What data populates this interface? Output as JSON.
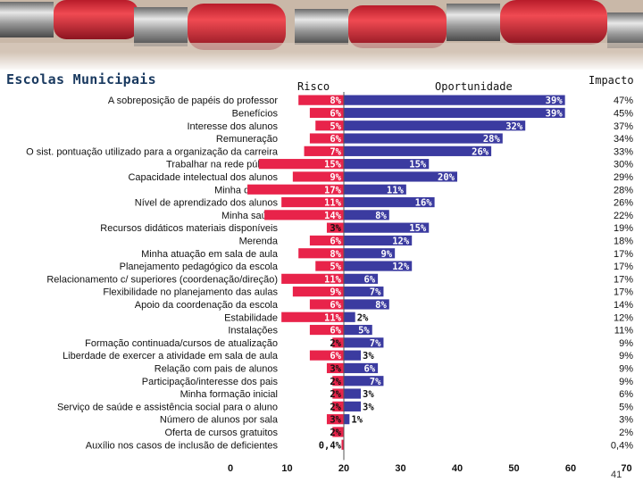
{
  "title": "Escolas Municipais",
  "page_number": "41",
  "chart_data": {
    "type": "bar",
    "stacked_diverging": true,
    "categories": [
      "A sobreposição de papéis do professor",
      "Benefícios",
      "Interesse dos alunos",
      "Remuneração",
      "O sist. pontuação utilizado para a organização da carreira",
      "Trabalhar na rede pública",
      "Capacidade intelectual dos alunos",
      "Minha didática",
      "Nível de aprendizado dos alunos",
      "Minha saúde",
      "Recursos didáticos materiais disponíveis",
      "Merenda",
      "Minha atuação em sala de aula",
      "Planejamento pedagógico da escola",
      "Relacionamento c/ superiores (coordenação/direção)",
      "Flexibilidade no planejamento das aulas",
      "Apoio da coordenação da escola",
      "Estabilidade",
      "Instalações",
      "Formação continuada/cursos de atualização",
      "Liberdade de exercer a atividade em sala de aula",
      "Relação com pais de alunos",
      "Participação/interesse dos pais",
      "Minha formação inicial",
      "Serviço de saúde e assistência social para o aluno",
      "Número de alunos por sala",
      "Oferta de cursos gratuitos",
      "Auxílio nos casos de inclusão de deficientes"
    ],
    "series": [
      {
        "name": "Risco",
        "color": "#e8234a",
        "values": [
          8,
          6,
          5,
          6,
          7,
          15,
          9,
          17,
          11,
          14,
          3,
          6,
          8,
          5,
          11,
          9,
          6,
          11,
          6,
          2,
          6,
          3,
          2,
          2,
          2,
          3,
          2,
          0.4
        ],
        "labels": [
          "8%",
          "6%",
          "5%",
          "6%",
          "7%",
          "15%",
          "9%",
          "17%",
          "11%",
          "14%",
          "3%",
          "6%",
          "8%",
          "5%",
          "11%",
          "9%",
          "6%",
          "11%",
          "6%",
          "2%",
          "6%",
          "3%",
          "2%",
          "2%",
          "2%",
          "3%",
          "2%",
          "0,4%"
        ]
      },
      {
        "name": "Oportunidade",
        "color": "#3b3ba0",
        "values": [
          39,
          39,
          32,
          28,
          26,
          15,
          20,
          11,
          16,
          8,
          15,
          12,
          9,
          12,
          6,
          7,
          8,
          2,
          5,
          7,
          3,
          6,
          7,
          3,
          3,
          1,
          0,
          0
        ],
        "labels": [
          "39%",
          "39%",
          "32%",
          "28%",
          "26%",
          "15%",
          "20%",
          "11%",
          "16%",
          "8%",
          "15%",
          "12%",
          "9%",
          "12%",
          "6%",
          "7%",
          "8%",
          "2%",
          "5%",
          "7%",
          "3%",
          "6%",
          "7%",
          "3%",
          "3%",
          "1%",
          "",
          ""
        ]
      }
    ],
    "impact_title": "Impacto",
    "impact_labels": [
      "47%",
      "45%",
      "37%",
      "34%",
      "33%",
      "30%",
      "29%",
      "28%",
      "26%",
      "22%",
      "19%",
      "18%",
      "17%",
      "17%",
      "17%",
      "17%",
      "14%",
      "12%",
      "11%",
      "9%",
      "9%",
      "9%",
      "9%",
      "6%",
      "5%",
      "3%",
      "2%",
      "0,4%"
    ],
    "xlim": [
      0,
      70
    ],
    "x_ticks": [
      "0",
      "10",
      "20",
      "30",
      "40",
      "50",
      "60",
      "70"
    ],
    "baseline": 20,
    "grid": false,
    "legend": "none"
  }
}
